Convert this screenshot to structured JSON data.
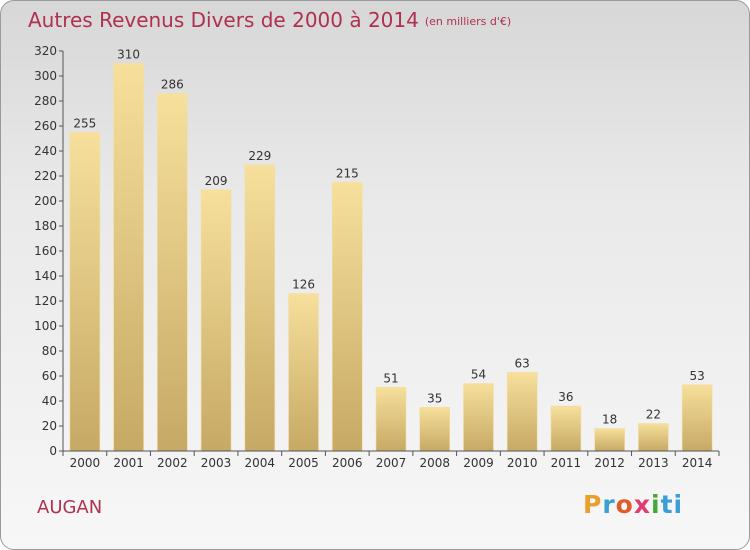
{
  "title": "Autres Revenus Divers de 2000 à 2014",
  "unit_note": "(en milliers d'€)",
  "commune": "AUGAN",
  "logo": [
    "P",
    "r",
    "o",
    "x",
    "i",
    "ti"
  ],
  "colors": {
    "title": "#b0304f",
    "bar_light": "#f6e09c",
    "bar_dark": "#c6a964",
    "axis": "#555555"
  },
  "chart_data": {
    "type": "bar",
    "title": "Autres Revenus Divers de 2000 à 2014",
    "subtitle": "(en milliers d'€)",
    "categories": [
      "2000",
      "2001",
      "2002",
      "2003",
      "2004",
      "2005",
      "2006",
      "2007",
      "2008",
      "2009",
      "2010",
      "2011",
      "2012",
      "2013",
      "2014"
    ],
    "values": [
      255,
      310,
      286,
      209,
      229,
      126,
      215,
      51,
      35,
      54,
      63,
      36,
      18,
      22,
      53
    ],
    "ylim": [
      0,
      320
    ],
    "yticks": [
      0,
      20,
      40,
      60,
      80,
      100,
      120,
      140,
      160,
      180,
      200,
      220,
      240,
      260,
      280,
      300,
      320
    ],
    "grid": false,
    "legend": "none"
  }
}
